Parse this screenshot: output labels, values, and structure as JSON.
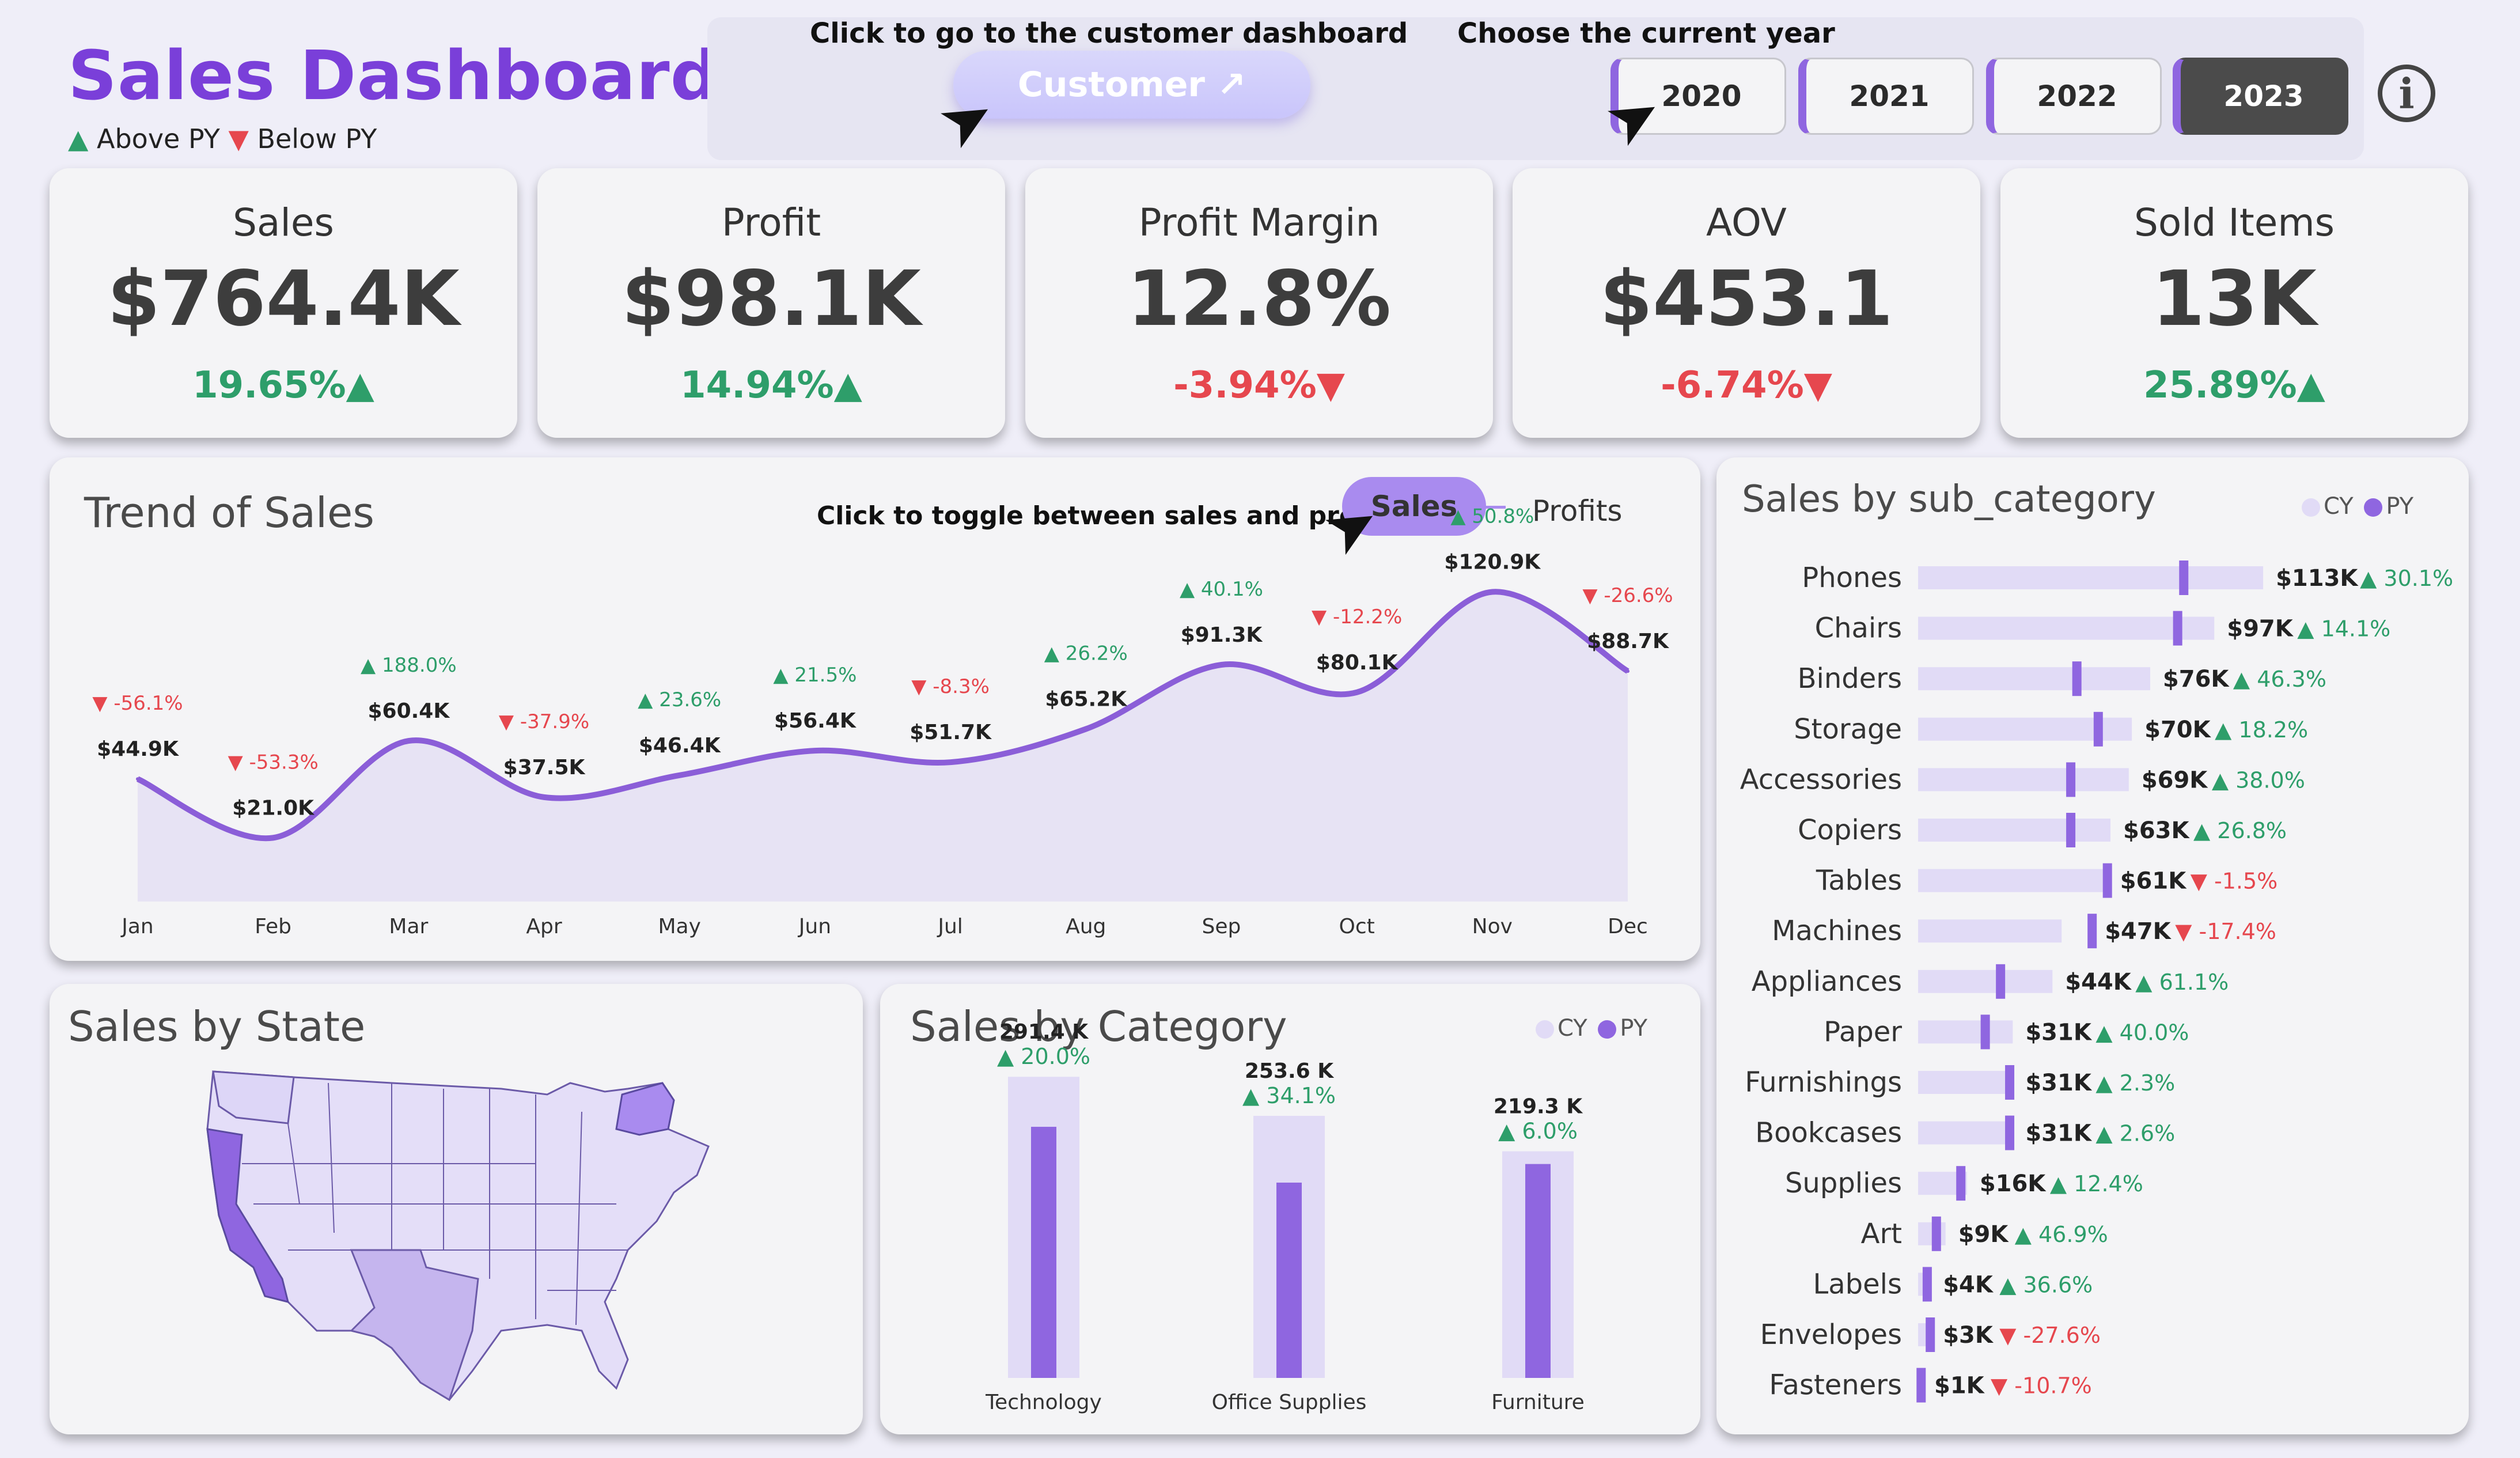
{
  "header": {
    "title": "Sales Dashboard",
    "legend": {
      "above": "Above PY",
      "below": "Below PY",
      "above_symbol": "▲",
      "below_symbol": "▼"
    },
    "customer_hint": "Click to go to the customer dashboard",
    "customer_button": "Customer ↗",
    "year_hint": "Choose the current year",
    "years": [
      "2020",
      "2021",
      "2022",
      "2023"
    ],
    "active_year": "2023",
    "info_icon": "i"
  },
  "kpis": [
    {
      "label": "Sales",
      "value": "$764.4K",
      "change": "19.65%▲",
      "dir": "up"
    },
    {
      "label": "Profit",
      "value": "$98.1K",
      "change": "14.94%▲",
      "dir": "up"
    },
    {
      "label": "Profit Margin",
      "value": "12.8%",
      "change": "-3.94%▼",
      "dir": "down"
    },
    {
      "label": "AOV",
      "value": "$453.1",
      "change": "-6.74%▼",
      "dir": "down"
    },
    {
      "label": "Sold Items",
      "value": "13K",
      "change": "25.89%▲",
      "dir": "up"
    }
  ],
  "trend": {
    "title": "Trend of Sales",
    "toggle_hint": "Click to toggle between sales and profit",
    "toggle_sales": "Sales",
    "toggle_profits": "Profits"
  },
  "state_panel": {
    "title": "Sales by State"
  },
  "category_panel": {
    "title": "Sales by Category",
    "legend_cy": "CY",
    "legend_py": "PY"
  },
  "subcat_panel": {
    "title": "Sales by sub_category",
    "legend_cy": "CY",
    "legend_py": "PY"
  },
  "colors": {
    "accent": "#7a3fd9",
    "cy_bar": "#e1dbf6",
    "py_marker": "#8f66e0",
    "up": "#2e9e6a",
    "down": "#e6474e",
    "line": "#8b5ed8"
  },
  "chart_data": [
    {
      "type": "line",
      "title": "Trend of Sales",
      "categories": [
        "Jan",
        "Feb",
        "Mar",
        "Apr",
        "May",
        "Jun",
        "Jul",
        "Aug",
        "Sep",
        "Oct",
        "Nov",
        "Dec"
      ],
      "values": [
        44.9,
        21.0,
        60.4,
        37.5,
        46.4,
        56.4,
        51.7,
        65.2,
        91.3,
        80.1,
        120.9,
        88.7
      ],
      "value_labels": [
        "$44.9K",
        "$21.0K",
        "$60.4K",
        "$37.5K",
        "$46.4K",
        "$56.4K",
        "$51.7K",
        "$65.2K",
        "$91.3K",
        "$80.1K",
        "$120.9K",
        "$88.7K"
      ],
      "changes": [
        "▼ -56.1%",
        "▼ -53.3%",
        "▲ 188.0%",
        "▼ -37.9%",
        "▲ 23.6%",
        "▲ 21.5%",
        "▼ -8.3%",
        "▲ 26.2%",
        "▲ 40.1%",
        "▼ -12.2%",
        "▲ 50.8%",
        "▼ -26.6%"
      ],
      "change_dirs": [
        "down",
        "down",
        "up",
        "down",
        "up",
        "up",
        "down",
        "up",
        "up",
        "down",
        "up",
        "down"
      ]
    },
    {
      "type": "bar",
      "title": "Sales by Category",
      "categories": [
        "Technology",
        "Office Supplies",
        "Furniture"
      ],
      "series": [
        {
          "name": "CY",
          "values": [
            291.4,
            253.6,
            219.3
          ]
        },
        {
          "name": "PY",
          "values": [
            243.0,
            189.0,
            207.0
          ]
        }
      ],
      "value_labels": [
        "291.4 K",
        "253.6 K",
        "219.3 K"
      ],
      "changes": [
        "▲ 20.0%",
        "▲ 34.1%",
        "▲ 6.0%"
      ]
    },
    {
      "type": "bar",
      "title": "Sales by sub_category",
      "orientation": "horizontal",
      "categories": [
        "Phones",
        "Chairs",
        "Binders",
        "Storage",
        "Accessories",
        "Copiers",
        "Tables",
        "Machines",
        "Appliances",
        "Paper",
        "Furnishings",
        "Bookcases",
        "Supplies",
        "Art",
        "Labels",
        "Envelopes",
        "Fasteners"
      ],
      "series": [
        {
          "name": "CY",
          "values": [
            113,
            97,
            76,
            70,
            69,
            63,
            61,
            47,
            44,
            31,
            31,
            31,
            16,
            9,
            4,
            3,
            1
          ]
        },
        {
          "name": "PY",
          "values": [
            87,
            85,
            52,
            59,
            50,
            50,
            62,
            57,
            27,
            22,
            30,
            30,
            14,
            6,
            3,
            4,
            1
          ]
        }
      ],
      "value_labels": [
        "$113K",
        "$97K",
        "$76K",
        "$70K",
        "$69K",
        "$63K",
        "$61K",
        "$47K",
        "$44K",
        "$31K",
        "$31K",
        "$31K",
        "$16K",
        "$9K",
        "$4K",
        "$3K",
        "$1K"
      ],
      "changes": [
        "▲ 30.1%",
        "▲ 14.1%",
        "▲ 46.3%",
        "▲ 18.2%",
        "▲ 38.0%",
        "▲ 26.8%",
        "▼ -1.5%",
        "▼ -17.4%",
        "▲ 61.1%",
        "▲ 40.0%",
        "▲ 2.3%",
        "▲ 2.6%",
        "▲ 12.4%",
        "▲ 46.9%",
        "▲ 36.6%",
        "▼ -27.6%",
        "▼ -10.7%"
      ],
      "change_dirs": [
        "up",
        "up",
        "up",
        "up",
        "up",
        "up",
        "down",
        "down",
        "up",
        "up",
        "up",
        "up",
        "up",
        "up",
        "up",
        "down",
        "down"
      ]
    }
  ]
}
